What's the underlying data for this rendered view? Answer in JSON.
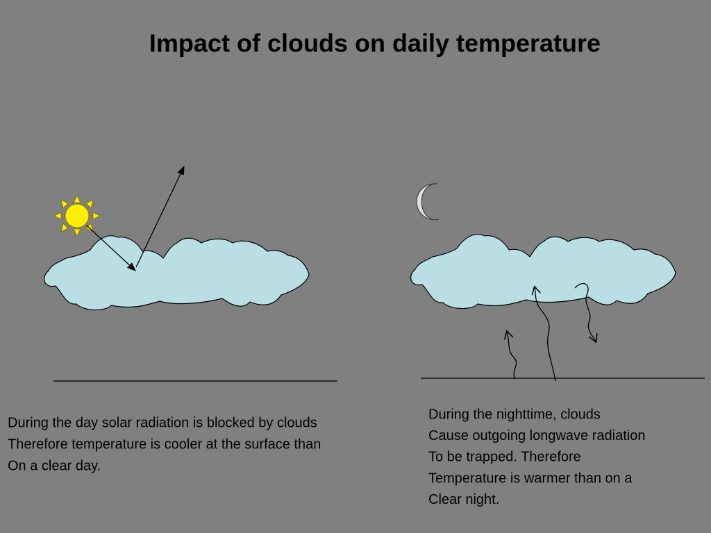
{
  "title": "Impact of clouds on daily temperature",
  "panels": [
    {
      "caption": [
        "During the day solar radiation is blocked by clouds",
        "Therefore temperature is cooler at the surface than",
        "On a clear day."
      ]
    },
    {
      "caption": [
        "During the nighttime, clouds",
        "Cause outgoing longwave radiation",
        "To be trapped.  Therefore",
        "Temperature is warmer than on a",
        "Clear night."
      ]
    }
  ]
}
